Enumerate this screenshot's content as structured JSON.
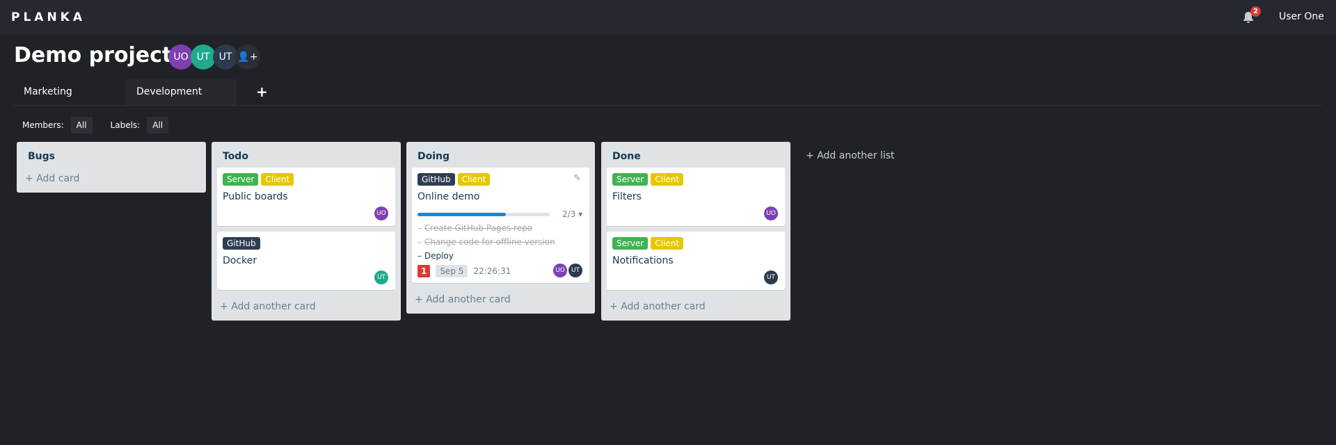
{
  "header": {
    "logo": "PLANKA",
    "notifications": "2",
    "user": "User One"
  },
  "project": {
    "title": "Demo project",
    "members": [
      {
        "initials": "UO",
        "color": "#7e3fb0"
      },
      {
        "initials": "UT",
        "color": "#1dab8c"
      },
      {
        "initials": "UT",
        "color": "#2b3a4c"
      }
    ]
  },
  "tabs": [
    "Marketing",
    "Development"
  ],
  "filters": {
    "members_label": "Members:",
    "members_value": "All",
    "labels_label": "Labels:",
    "labels_value": "All"
  },
  "colors": {
    "server": "#3fb34f",
    "client": "#e6c700",
    "github": "#2d3e50",
    "uo": "#7e3fb0",
    "ut_green": "#1dab8c",
    "ut_dark": "#2b3a4c"
  },
  "lists": [
    {
      "title": "Bugs",
      "add": "Add card"
    },
    {
      "title": "Todo",
      "add": "Add another card",
      "cards": [
        {
          "labels": [
            "Server",
            "Client"
          ],
          "title": "Public boards",
          "member": "UO"
        },
        {
          "labels": [
            "GitHub"
          ],
          "title": "Docker",
          "member": "UT"
        }
      ]
    },
    {
      "title": "Doing",
      "add": "Add another card",
      "cards": [
        {
          "labels": [
            "GitHub",
            "Client"
          ],
          "title": "Online demo",
          "progress": "2/3",
          "progress_fraction": 0.667,
          "tasks": [
            {
              "text": "Create GitHub Pages repo",
              "done": true
            },
            {
              "text": "Change code for offline version",
              "done": true
            },
            {
              "text": "Deploy",
              "done": false
            }
          ],
          "attachments": "1",
          "due": "Sep 5",
          "timer": "22:26:31",
          "members": [
            "UO",
            "UT"
          ]
        }
      ]
    },
    {
      "title": "Done",
      "add": "Add another card",
      "cards": [
        {
          "labels": [
            "Server",
            "Client"
          ],
          "title": "Filters",
          "member": "UO"
        },
        {
          "labels": [
            "Server",
            "Client"
          ],
          "title": "Notifications",
          "member": "UT"
        }
      ]
    }
  ],
  "add_list": "Add another list"
}
